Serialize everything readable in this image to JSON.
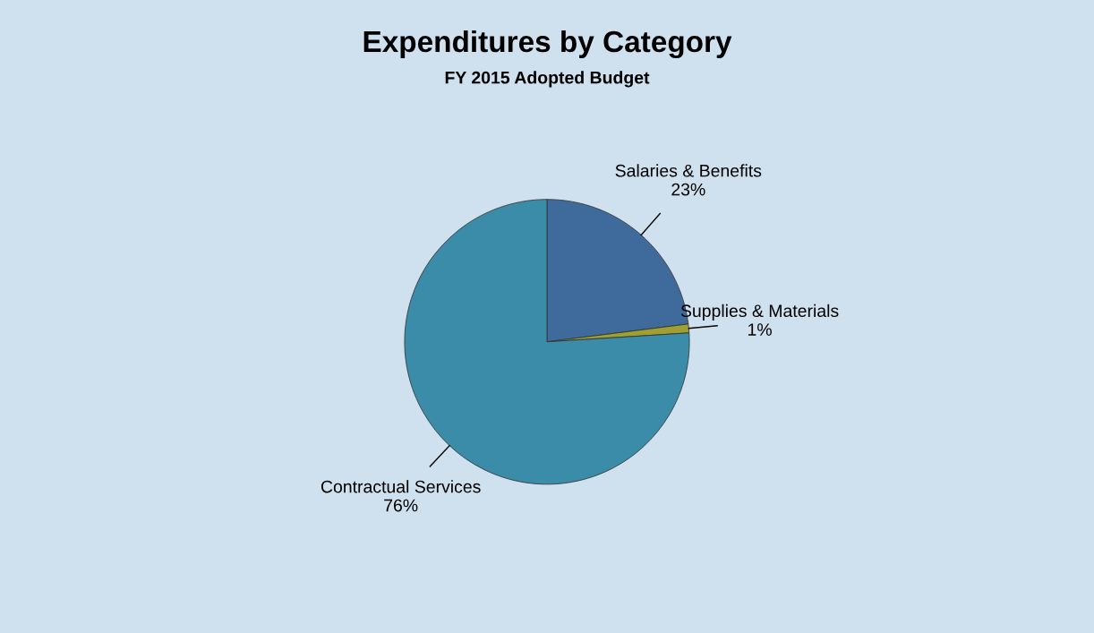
{
  "chart_data": {
    "type": "pie",
    "title": "Expenditures by Category",
    "subtitle": "FY 2015 Adopted Budget",
    "categories": [
      "Salaries & Benefits",
      "Supplies & Materials",
      "Contractual Services"
    ],
    "values": [
      23,
      1,
      76
    ],
    "value_labels": [
      "23%",
      "1%",
      "76%"
    ],
    "colors": [
      "#3f6b9c",
      "#a0a032",
      "#3a8ca8"
    ],
    "legend": false
  }
}
